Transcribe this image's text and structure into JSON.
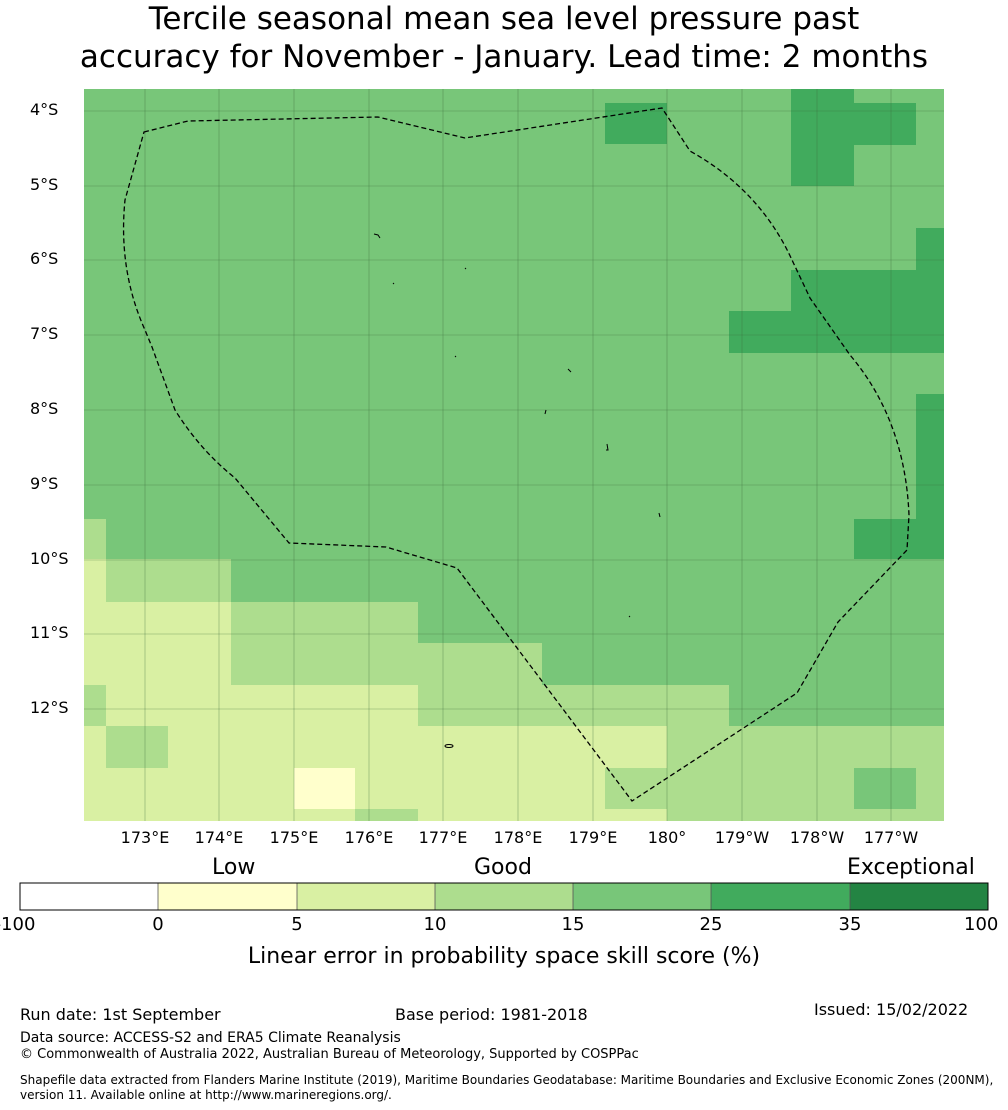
{
  "title_line1": "Tercile seasonal mean sea level pressure past",
  "title_line2": "accuracy for November - January. Lead time: 2 months",
  "lat_labels": [
    "4°S",
    "5°S",
    "6°S",
    "7°S",
    "8°S",
    "9°S",
    "10°S",
    "11°S",
    "12°S"
  ],
  "lon_labels": [
    "173°E",
    "174°E",
    "175°E",
    "176°E",
    "177°E",
    "178°E",
    "179°E",
    "180°",
    "179°W",
    "178°W",
    "177°W"
  ],
  "colorbar": {
    "categories": [
      "Low",
      "Good",
      "Exceptional"
    ],
    "ticks": [
      "-100",
      "0",
      "5",
      "10",
      "15",
      "25",
      "35",
      "100"
    ],
    "colors": [
      "#ffffff",
      "#ffffcc",
      "#d9f0a3",
      "#addd8e",
      "#78c679",
      "#41ab5d",
      "#238443"
    ],
    "label": "Linear error in probability space skill score (%)"
  },
  "footer": {
    "run_date": "Run date: 1st September",
    "base_period": "Base period: 1981-2018",
    "issued": "Issued: 15/02/2022",
    "data_source": "Data source: ACCESS-S2 and ERA5 Climate Reanalysis",
    "copyright": "© Commonwealth of Australia 2022, Australian Bureau of Meteorology, Supported by COSPPac",
    "shapefile_line1": "Shapefile data extracted from Flanders Marine Institute (2019), Maritime Boundaries Geodatabase: Maritime Boundaries and Exclusive Economic Zones (200NM),",
    "shapefile_line2": "version 11. Available online at http://www.marineregions.org/."
  }
}
